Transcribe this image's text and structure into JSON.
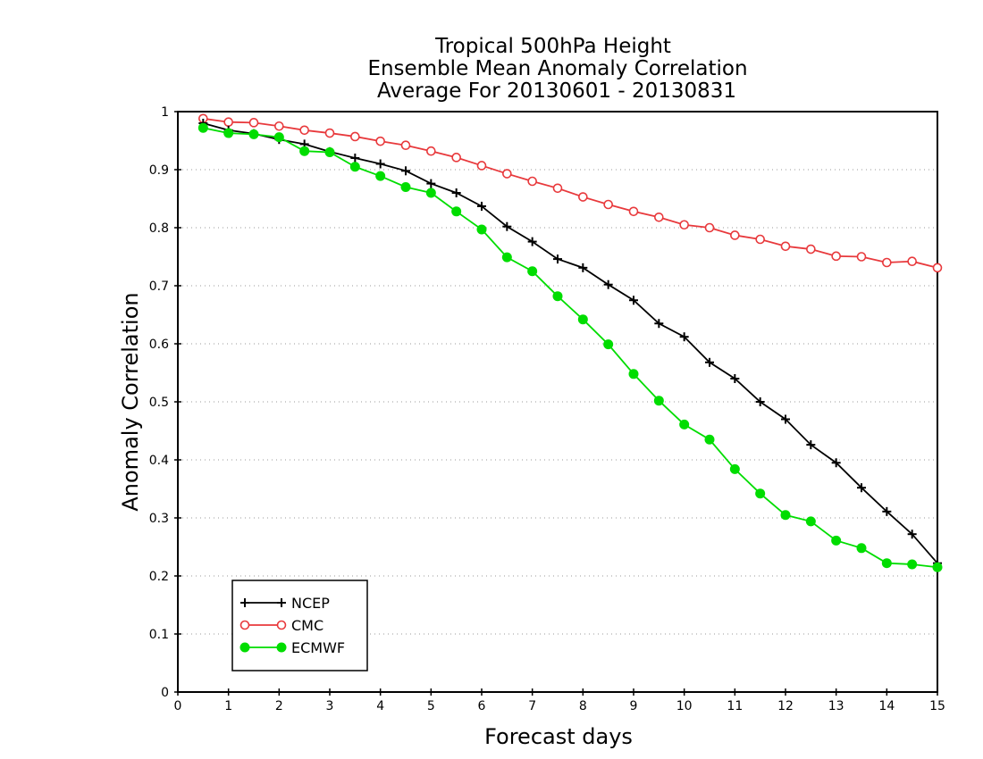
{
  "chart_data": {
    "type": "line",
    "title": [
      "Tropical 500hPa Height",
      "Ensemble Mean Anomaly Correlation",
      "Average For 20130601 - 20130831"
    ],
    "xlabel": "Forecast days",
    "ylabel": "Anomaly Correlation",
    "xlim": [
      0,
      15
    ],
    "ylim": [
      0,
      1
    ],
    "x_ticks": [
      0,
      1,
      2,
      3,
      4,
      5,
      6,
      7,
      8,
      9,
      10,
      11,
      12,
      13,
      14,
      15
    ],
    "y_ticks": [
      0,
      0.1,
      0.2,
      0.3,
      0.4,
      0.5,
      0.6,
      0.7,
      0.8,
      0.9,
      1
    ],
    "grid": "horizontal-dotted",
    "legend_position": "bottom-left",
    "x": [
      0.5,
      1,
      1.5,
      2,
      2.5,
      3,
      3.5,
      4,
      4.5,
      5,
      5.5,
      6,
      6.5,
      7,
      7.5,
      8,
      8.5,
      9,
      9.5,
      10,
      10.5,
      11,
      11.5,
      12,
      12.5,
      13,
      13.5,
      14,
      14.5,
      15
    ],
    "series": [
      {
        "name": "NCEP",
        "color": "#000000",
        "marker": "plus",
        "values": [
          0.98,
          0.968,
          0.962,
          0.952,
          0.944,
          0.931,
          0.92,
          0.91,
          0.898,
          0.876,
          0.86,
          0.837,
          0.802,
          0.776,
          0.746,
          0.731,
          0.702,
          0.675,
          0.635,
          0.612,
          0.568,
          0.54,
          0.5,
          0.47,
          0.426,
          0.395,
          0.352,
          0.311,
          0.272,
          0.222
        ]
      },
      {
        "name": "CMC",
        "color": "#e8393c",
        "marker": "open-circle",
        "values": [
          0.988,
          0.982,
          0.981,
          0.975,
          0.968,
          0.963,
          0.957,
          0.949,
          0.942,
          0.932,
          0.921,
          0.907,
          0.893,
          0.88,
          0.868,
          0.853,
          0.84,
          0.828,
          0.818,
          0.805,
          0.8,
          0.787,
          0.78,
          0.768,
          0.763,
          0.751,
          0.75,
          0.74,
          0.742,
          0.731
        ]
      },
      {
        "name": "ECMWF",
        "color": "#00dd00",
        "marker": "filled-circle",
        "values": [
          0.972,
          0.963,
          0.961,
          0.956,
          0.932,
          0.93,
          0.905,
          0.889,
          0.87,
          0.86,
          0.828,
          0.797,
          0.749,
          0.725,
          0.682,
          0.642,
          0.599,
          0.548,
          0.502,
          0.461,
          0.435,
          0.384,
          0.342,
          0.305,
          0.294,
          0.261,
          0.248,
          0.222,
          0.22,
          0.215
        ]
      }
    ]
  }
}
